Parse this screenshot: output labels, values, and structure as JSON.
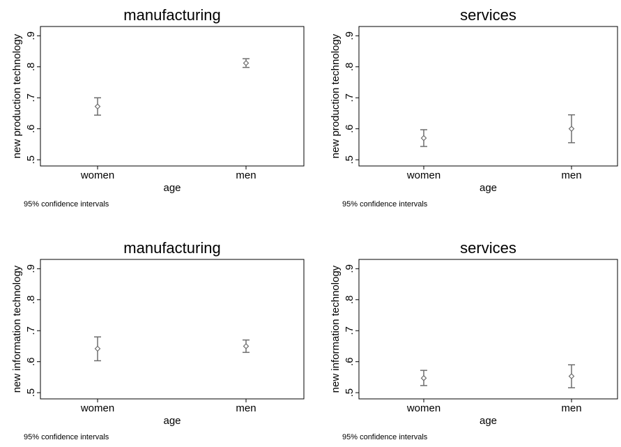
{
  "chart_data": [
    {
      "type": "scatter",
      "title": "manufacturing",
      "xlabel": "age",
      "ylabel": "new production technology",
      "note": "95% confidence intervals",
      "categories": [
        "women",
        "men"
      ],
      "ylim": [
        0.48,
        0.93
      ],
      "yticks": [
        ".5",
        ".6",
        ".7",
        ".8",
        ".9"
      ],
      "ytick_values": [
        0.5,
        0.6,
        0.7,
        0.8,
        0.9
      ],
      "points": [
        {
          "category": "women",
          "y": 0.672,
          "lower": 0.644,
          "upper": 0.7
        },
        {
          "category": "men",
          "y": 0.812,
          "lower": 0.798,
          "upper": 0.826
        }
      ],
      "color": "#6e6e6e",
      "grid": false
    },
    {
      "type": "scatter",
      "title": "services",
      "xlabel": "age",
      "ylabel": "new production technology",
      "note": "95% confidence intervals",
      "categories": [
        "women",
        "men"
      ],
      "ylim": [
        0.48,
        0.93
      ],
      "yticks": [
        ".5",
        ".6",
        ".7",
        ".8",
        ".9"
      ],
      "ytick_values": [
        0.5,
        0.6,
        0.7,
        0.8,
        0.9
      ],
      "points": [
        {
          "category": "women",
          "y": 0.57,
          "lower": 0.543,
          "upper": 0.597
        },
        {
          "category": "men",
          "y": 0.6,
          "lower": 0.555,
          "upper": 0.645
        }
      ],
      "color": "#6e6e6e",
      "grid": false
    },
    {
      "type": "scatter",
      "title": "manufacturing",
      "xlabel": "age",
      "ylabel": "new information technology",
      "note": "95% confidence intervals",
      "categories": [
        "women",
        "men"
      ],
      "ylim": [
        0.48,
        0.93
      ],
      "yticks": [
        ".5",
        ".6",
        ".7",
        ".8",
        ".9"
      ],
      "ytick_values": [
        0.5,
        0.6,
        0.7,
        0.8,
        0.9
      ],
      "points": [
        {
          "category": "women",
          "y": 0.642,
          "lower": 0.603,
          "upper": 0.68
        },
        {
          "category": "men",
          "y": 0.65,
          "lower": 0.63,
          "upper": 0.67
        }
      ],
      "color": "#6e6e6e",
      "grid": false
    },
    {
      "type": "scatter",
      "title": "services",
      "xlabel": "age",
      "ylabel": "new information technology",
      "note": "95% confidence intervals",
      "categories": [
        "women",
        "men"
      ],
      "ylim": [
        0.48,
        0.93
      ],
      "yticks": [
        ".5",
        ".6",
        ".7",
        ".8",
        ".9"
      ],
      "ytick_values": [
        0.5,
        0.6,
        0.7,
        0.8,
        0.9
      ],
      "points": [
        {
          "category": "women",
          "y": 0.547,
          "lower": 0.523,
          "upper": 0.572
        },
        {
          "category": "men",
          "y": 0.553,
          "lower": 0.516,
          "upper": 0.59
        }
      ],
      "color": "#6e6e6e",
      "grid": false
    }
  ]
}
